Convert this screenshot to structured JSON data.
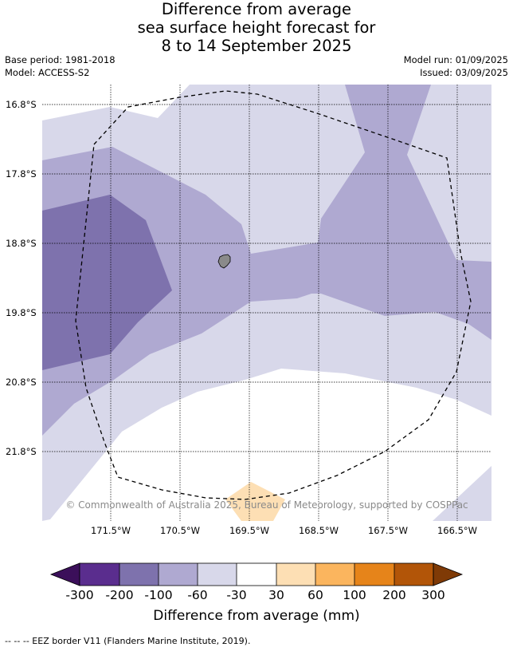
{
  "title": {
    "line1": "Difference from average",
    "line2": "sea surface height forecast for",
    "line3": "8 to 14 September 2025"
  },
  "meta": {
    "base_period": "Base period: 1981-2018",
    "model": "Model: ACCESS-S2",
    "model_run": "Model run: 01/09/2025",
    "issued": "Issued: 03/09/2025"
  },
  "map": {
    "lat_labels": [
      "16.8°S",
      "17.8°S",
      "18.8°S",
      "19.8°S",
      "20.8°S",
      "21.8°S"
    ],
    "lon_labels": [
      "171.5°W",
      "170.5°W",
      "169.5°W",
      "168.5°W",
      "167.5°W",
      "166.5°W"
    ],
    "copyright": "© Commonwealth of Australia 2025, Bureau of Meteorology, supported by COSPPac",
    "colors": {
      "minus300": "#3b0f5a",
      "minus200": "#5a2d8e",
      "minus100": "#7e72ad",
      "minus60": "#afa9d1",
      "minus30": "#d8d8ea",
      "zero": "#ffffff",
      "plus30": "#fddfb4",
      "plus60": "#fbb55e",
      "plus100": "#e6841a",
      "plus200": "#b25508",
      "plus300": "#7f3a06"
    }
  },
  "colorbar": {
    "tick_labels": [
      "-300",
      "-200",
      "-100",
      "-60",
      "-30",
      "30",
      "60",
      "100",
      "200",
      "300"
    ],
    "title": "Difference from average (mm)"
  },
  "footer": "--  --  -- EEZ border V11 (Flanders Marine Institute, 2019)."
}
